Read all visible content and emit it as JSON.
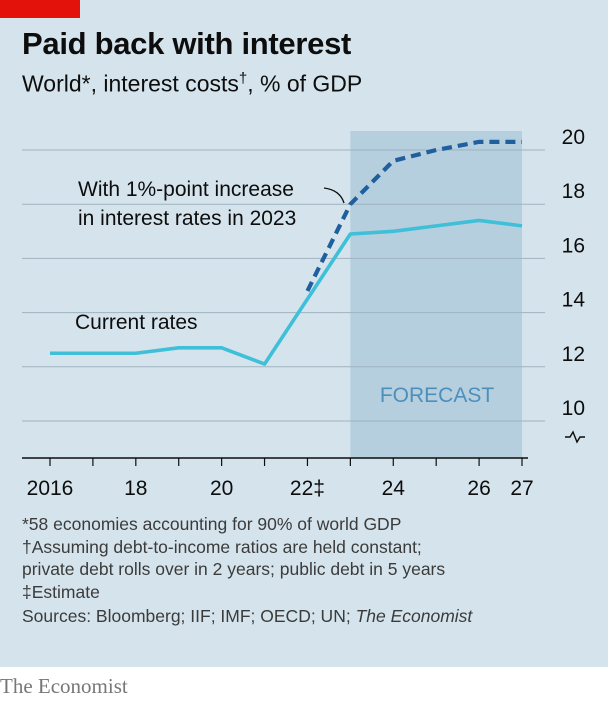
{
  "header": {
    "title": "Paid back with interest",
    "subtitle_main": "World*, interest costs",
    "subtitle_mark": "†",
    "subtitle_tail": ", % of GDP"
  },
  "chart_data": {
    "type": "line",
    "title": "Paid back with interest",
    "subtitle": "World*, interest costs†, % of GDP",
    "x_ticks": [
      2016,
      2017,
      2018,
      2019,
      2020,
      2021,
      2022,
      2023,
      2024,
      2025,
      2026,
      2027
    ],
    "x_tick_labels": [
      {
        "x": 2016,
        "label": "2016"
      },
      {
        "x": 2018,
        "label": "18"
      },
      {
        "x": 2020,
        "label": "20"
      },
      {
        "x": 2022,
        "label": "22‡"
      },
      {
        "x": 2024,
        "label": "24"
      },
      {
        "x": 2026,
        "label": "26"
      },
      {
        "x": 2027,
        "label": "27"
      }
    ],
    "xlim": [
      2016,
      2027
    ],
    "y_ticks": [
      10,
      12,
      14,
      16,
      18,
      20
    ],
    "ylim": [
      9,
      20.3
    ],
    "y_axis_break": true,
    "y_axis_side": "right",
    "grid": "horizontal",
    "forecast_region": {
      "from": 2023,
      "to": 2027,
      "label": "FORECAST"
    },
    "series": [
      {
        "name": "Current rates",
        "style": "solid",
        "color": "#40bfd9",
        "x": [
          2016,
          2017,
          2018,
          2019,
          2020,
          2021,
          2022,
          2023,
          2024,
          2025,
          2026,
          2027
        ],
        "values": [
          12.5,
          12.5,
          12.5,
          12.7,
          12.7,
          12.1,
          14.5,
          16.9,
          17.0,
          17.2,
          17.4,
          17.2
        ]
      },
      {
        "name": "With 1%-point increase in interest rates in 2023",
        "style": "dashed",
        "color": "#1f5f9e",
        "x": [
          2022,
          2023,
          2024,
          2025,
          2026,
          2027
        ],
        "values": [
          14.8,
          18.0,
          19.6,
          20.0,
          20.3,
          20.3
        ]
      }
    ],
    "annotations": [
      {
        "text": "Current rates",
        "series": "Current rates"
      },
      {
        "text": "With 1%-point increase in interest rates in 2023",
        "series": "With 1%-point increase in interest rates in 2023"
      },
      {
        "text": "FORECAST"
      }
    ]
  },
  "labels": {
    "current_rates": "Current rates",
    "increase_line1": "With 1%-point increase",
    "increase_line2": "in interest rates in 2023",
    "forecast": "FORECAST"
  },
  "notes": {
    "n1": "*58 economies accounting for 90% of world GDP",
    "n2": "†Assuming debt-to-income ratios are held constant;",
    "n3": "private debt rolls over in 2 years; public debt in 5 years",
    "n4": "‡Estimate",
    "sources_prefix": "Sources: Bloomberg; IIF; IMF; OECD; UN; ",
    "sources_italic": "The Economist"
  },
  "brand": "The Economist",
  "colors": {
    "background": "#d5e4ec",
    "forecast_band": "#b6cfde",
    "current_rates": "#40bfd9",
    "increase": "#1f5f9e",
    "brand_red": "#e3120b"
  }
}
